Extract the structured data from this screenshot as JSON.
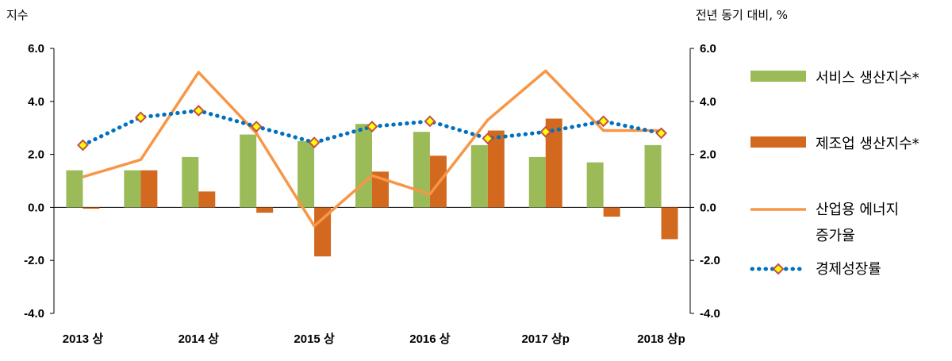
{
  "chart_data": {
    "type": "bar",
    "left_axis_label": "지수",
    "right_axis_label": "전년 동기 대비, %",
    "ylim": [
      -4.0,
      6.0
    ],
    "y2lim": [
      -4.0,
      6.0
    ],
    "yticks": [
      "6.0",
      "4.0",
      "2.0",
      "0.0",
      "-2.0",
      "-4.0"
    ],
    "y2ticks": [
      "6.0",
      "4.0",
      "2.0",
      "0.0",
      "-2.0",
      "-4.0"
    ],
    "categories": [
      "2013 상",
      "",
      "2014 상",
      "",
      "2015 상",
      "",
      "2016 상",
      "",
      "2017 상p",
      "",
      "2018 상p"
    ],
    "x_tick_labels": [
      "2013 상",
      "2014 상",
      "2015 상",
      "2016 상",
      "2017 상p",
      "2018 상p"
    ],
    "grid": false,
    "legend_position": "right",
    "series": [
      {
        "name": "서비스 생산지수*",
        "kind": "bar",
        "axis": "left",
        "color": "#9bbb59",
        "values": [
          1.4,
          1.4,
          1.9,
          2.75,
          2.5,
          3.15,
          2.85,
          2.35,
          1.9,
          1.7,
          2.35
        ]
      },
      {
        "name": "제조업 생산지수*",
        "kind": "bar",
        "axis": "left",
        "color": "#d2691e",
        "values": [
          -0.05,
          1.4,
          0.6,
          -0.2,
          -1.85,
          1.35,
          1.95,
          2.9,
          3.35,
          -0.35,
          -1.2
        ]
      },
      {
        "name_lines": [
          "산업용 에너지",
          "증가율"
        ],
        "kind": "line",
        "axis": "right",
        "color": "#f79646",
        "values": [
          1.15,
          1.8,
          5.1,
          2.8,
          -0.7,
          1.2,
          0.5,
          3.3,
          5.15,
          2.9,
          2.9
        ]
      },
      {
        "name": "경제성장률",
        "kind": "dotted-line-marker",
        "axis": "right",
        "color": "#0070c0",
        "marker_fill": "#ffff00",
        "marker_stroke": "#c0504d",
        "values": [
          2.35,
          3.4,
          3.65,
          3.05,
          2.45,
          3.05,
          3.25,
          2.6,
          2.85,
          3.25,
          2.8
        ]
      }
    ]
  }
}
